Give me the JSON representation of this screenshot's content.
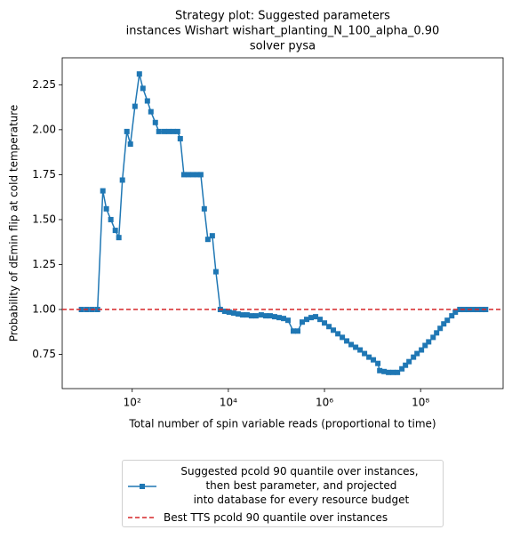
{
  "chart_data": {
    "type": "line",
    "title": [
      "Strategy plot: Suggested parameters",
      "instances Wishart wishart_planting_N_100_alpha_0.90",
      "solver pysa"
    ],
    "xlabel": "Total number of spin variable reads (proportional to time)",
    "ylabel": "Probability of dEmin flip at cold temperature",
    "xscale": "log",
    "xlim": [
      3.5,
      5200000000
    ],
    "ylim": [
      0.56,
      2.4
    ],
    "xticks": [
      {
        "value": 100,
        "label": "10²"
      },
      {
        "value": 10000,
        "label": "10⁴"
      },
      {
        "value": 1000000,
        "label": "10⁶"
      },
      {
        "value": 100000000,
        "label": "10⁸"
      }
    ],
    "yticks": [
      0.75,
      {
        "value": 1.0,
        "label": "1.00"
      },
      1.25,
      {
        "value": 1.5,
        "label": "1.50"
      },
      1.75,
      {
        "value": 2.0,
        "label": "2.00"
      },
      2.25
    ],
    "series": [
      {
        "name": "Suggested pcold 90 quantile over instances,\n then best parameter, and projected\n into database for every resource budget",
        "color": "#1f77b4",
        "marker": "square",
        "x": [
          8.79,
          11.4,
          14.7,
          19.0,
          24.5,
          29.0,
          35.9,
          44.5,
          52.7,
          62.5,
          77.4,
          91.8,
          114,
          141,
          167,
          207,
          245,
          303,
          359,
          464,
          574,
          711,
          880,
          1000,
          1190,
          1470,
          1820,
          2250,
          2670,
          3160,
          3750,
          4640,
          5510,
          6810,
          8430,
          10400,
          12900,
          16000,
          19800,
          24500,
          30300,
          37500,
          48400,
          60000,
          74200,
          91800,
          114000,
          141000,
          174000,
          225000,
          278000,
          344000,
          426000,
          527000,
          653000,
          808000,
          1000000,
          1240000,
          1530000,
          1900000,
          2350000,
          2900000,
          3590000,
          4450000,
          5510000,
          6810000,
          8430000,
          10400000,
          12900000,
          14100000,
          17400000,
          21500000,
          26700000,
          33000000,
          40800000,
          48400000,
          57400000,
          71100000,
          84300000,
          104000000,
          124000000,
          147000000,
          182000000,
          215000000,
          255000000,
          303000000,
          359000000,
          445000000,
          527000000,
          653000000,
          808000000,
          1000000000,
          1240000000,
          1530000000,
          1900000000,
          2250000000
        ],
        "values": [
          1.0,
          1.0,
          1.0,
          1.0,
          1.66,
          1.56,
          1.5,
          1.44,
          1.4,
          1.72,
          1.99,
          1.92,
          2.13,
          2.31,
          2.23,
          2.16,
          2.1,
          2.04,
          1.99,
          1.99,
          1.99,
          1.99,
          1.99,
          1.95,
          1.75,
          1.75,
          1.75,
          1.75,
          1.75,
          1.56,
          1.39,
          1.41,
          1.21,
          1.0,
          0.99,
          0.985,
          0.98,
          0.975,
          0.97,
          0.97,
          0.965,
          0.965,
          0.97,
          0.965,
          0.965,
          0.96,
          0.955,
          0.95,
          0.94,
          0.88,
          0.88,
          0.93,
          0.945,
          0.955,
          0.96,
          0.945,
          0.925,
          0.905,
          0.885,
          0.865,
          0.845,
          0.825,
          0.805,
          0.79,
          0.775,
          0.755,
          0.735,
          0.72,
          0.7,
          0.66,
          0.655,
          0.65,
          0.65,
          0.65,
          0.67,
          0.69,
          0.71,
          0.735,
          0.755,
          0.775,
          0.8,
          0.82,
          0.845,
          0.87,
          0.895,
          0.92,
          0.94,
          0.965,
          0.985,
          1.0,
          1.0,
          1.0,
          1.0,
          1.0,
          1.0,
          1.0
        ]
      }
    ],
    "hline": {
      "name": "Best TTS pcold 90 quantile over instances",
      "value": 1.0,
      "color": "#d62728",
      "style": "dashed"
    }
  }
}
